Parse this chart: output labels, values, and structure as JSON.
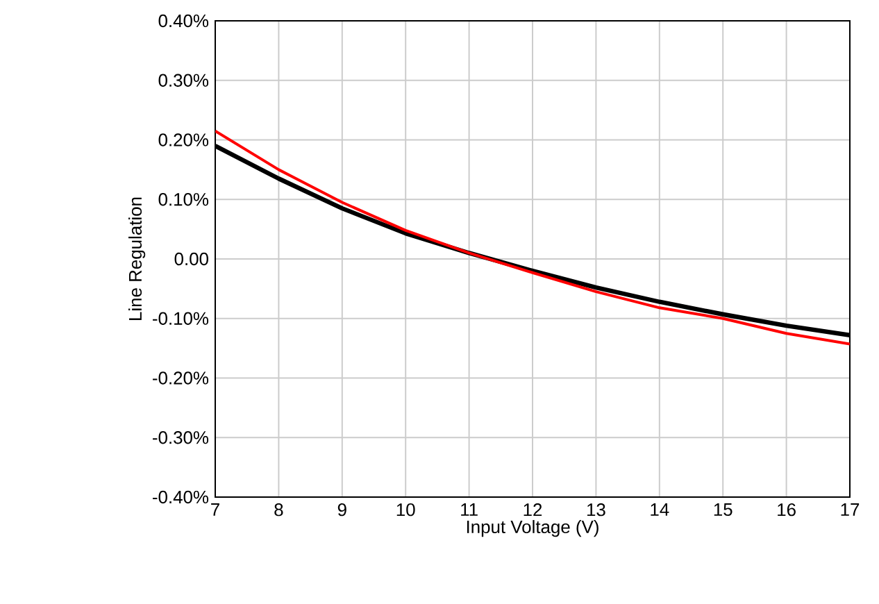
{
  "chart_data": {
    "type": "line",
    "xlabel": "Input Voltage (V)",
    "ylabel": "Line Regulation",
    "x": [
      7,
      8,
      9,
      10,
      11,
      12,
      13,
      14,
      15,
      16,
      17
    ],
    "series": [
      {
        "color": "#000000",
        "values": [
          0.19,
          0.135,
          0.085,
          0.043,
          0.01,
          -0.02,
          -0.048,
          -0.072,
          -0.093,
          -0.112,
          -0.128
        ]
      },
      {
        "color": "#ff0000",
        "values": [
          0.215,
          0.15,
          0.095,
          0.048,
          0.01,
          -0.023,
          -0.055,
          -0.082,
          -0.1,
          -0.125,
          -0.143
        ]
      }
    ],
    "xlim": [
      7,
      17
    ],
    "xticks": [
      7,
      8,
      9,
      10,
      11,
      12,
      13,
      14,
      15,
      16,
      17
    ],
    "ylim": [
      -0.4,
      0.4
    ],
    "yticks": [
      {
        "value": -0.4,
        "label": "-0.40%"
      },
      {
        "value": -0.3,
        "label": "-0.30%"
      },
      {
        "value": -0.2,
        "label": "-0.20%"
      },
      {
        "value": -0.1,
        "label": "-0.10%"
      },
      {
        "value": 0,
        "label": "0.00"
      },
      {
        "value": 0.1,
        "label": "0.10%"
      },
      {
        "value": 0.2,
        "label": "0.20%"
      },
      {
        "value": 0.3,
        "label": "0.30%"
      },
      {
        "value": 0.4,
        "label": "0.40%"
      }
    ],
    "grid": true,
    "marker": "none",
    "line_style": "solid"
  }
}
